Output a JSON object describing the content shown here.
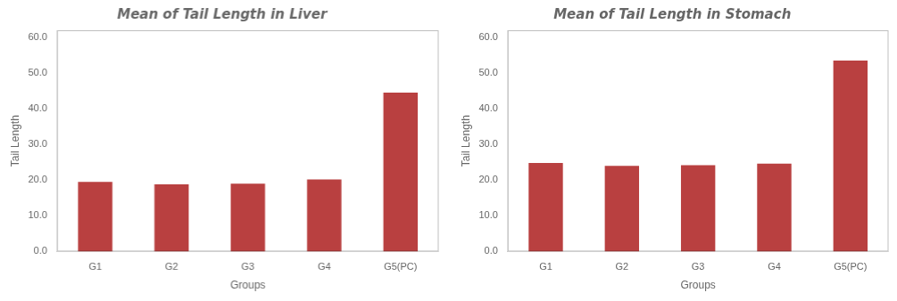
{
  "chart_data": [
    {
      "type": "bar",
      "title": "Mean of Tail Length in Liver",
      "categories": [
        "G1",
        "G2",
        "G3",
        "G4",
        "G5(PC)"
      ],
      "values": [
        19.5,
        18.8,
        19.0,
        20.2,
        44.5
      ],
      "color": "#b94040",
      "xlabel": "Groups",
      "ylabel": "Tail Length",
      "ylim": [
        0,
        62
      ],
      "yticks": [
        {
          "value": 0,
          "label": "0.0"
        },
        {
          "value": 10,
          "label": "10.0"
        },
        {
          "value": 20,
          "label": "20.0"
        },
        {
          "value": 30,
          "label": "30.0"
        },
        {
          "value": 40,
          "label": "40.0"
        },
        {
          "value": 50,
          "label": "50.0"
        },
        {
          "value": 60,
          "label": "60.0"
        }
      ],
      "grid": false
    },
    {
      "type": "bar",
      "title": "Mean of Tail Length in Stomach",
      "categories": [
        "G1",
        "G2",
        "G3",
        "G4",
        "G5(PC)"
      ],
      "values": [
        24.8,
        24.0,
        24.2,
        24.6,
        53.5
      ],
      "color": "#b94040",
      "xlabel": "Groups",
      "ylabel": "Tail Length",
      "ylim": [
        0,
        62
      ],
      "yticks": [
        {
          "value": 0,
          "label": "0.0"
        },
        {
          "value": 10,
          "label": "10.0"
        },
        {
          "value": 20,
          "label": "20.0"
        },
        {
          "value": 30,
          "label": "30.0"
        },
        {
          "value": 40,
          "label": "40.0"
        },
        {
          "value": 50,
          "label": "50.0"
        },
        {
          "value": 60,
          "label": "60.0"
        }
      ],
      "grid": false
    }
  ]
}
